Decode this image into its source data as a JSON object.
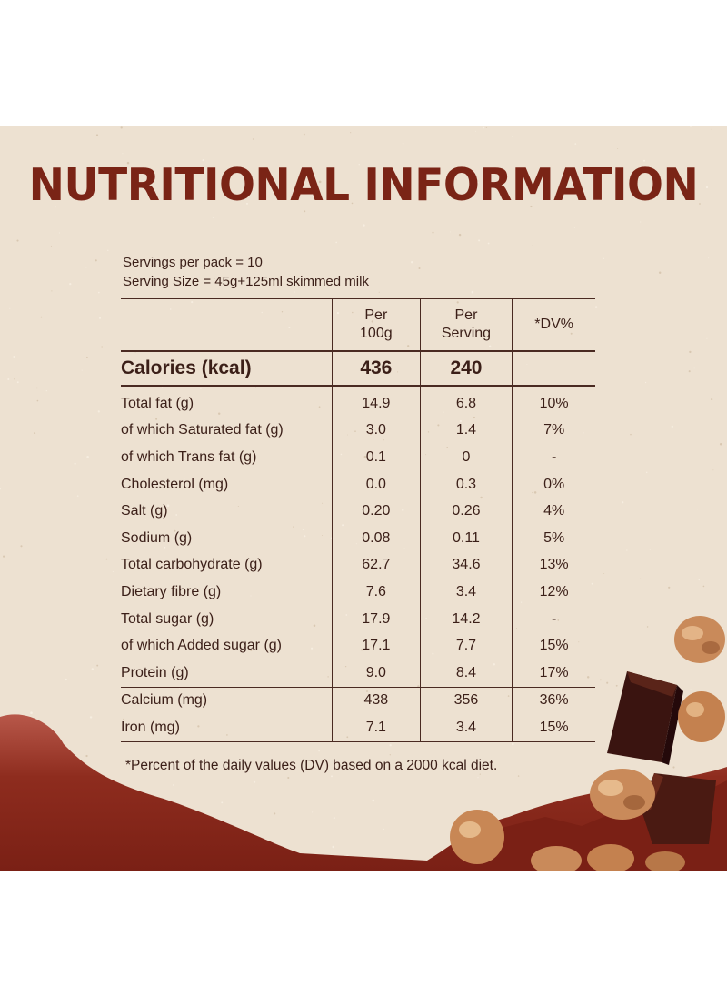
{
  "title": "NUTRITIONAL INFORMATION",
  "servings_per_pack": "Servings per pack = 10",
  "serving_size": "Serving Size = 45g+125ml skimmed milk",
  "table": {
    "headers": {
      "per100_line1": "Per",
      "per100_line2": "100g",
      "perserving_line1": "Per",
      "perserving_line2": "Serving",
      "dv": "*DV%"
    },
    "calories": {
      "label": "Calories (kcal)",
      "per100": "436",
      "perserving": "240",
      "dv": ""
    },
    "rows": [
      {
        "label": "Total fat (g)",
        "per100": "14.9",
        "perserving": "6.8",
        "dv": "10%"
      },
      {
        "label": "of which Saturated fat (g)",
        "per100": "3.0",
        "perserving": "1.4",
        "dv": "7%"
      },
      {
        "label": "of which Trans fat (g)",
        "per100": "0.1",
        "perserving": "0",
        "dv": "-"
      },
      {
        "label": "Cholesterol (mg)",
        "per100": "0.0",
        "perserving": "0.3",
        "dv": "0%"
      },
      {
        "label": "Salt (g)",
        "per100": "0.20",
        "perserving": "0.26",
        "dv": "4%"
      },
      {
        "label": "Sodium (g)",
        "per100": "0.08",
        "perserving": "0.11",
        "dv": "5%"
      },
      {
        "label": "Total carbohydrate (g)",
        "per100": "62.7",
        "perserving": "34.6",
        "dv": "13%"
      },
      {
        "label": "Dietary fibre (g)",
        "per100": "7.6",
        "perserving": "3.4",
        "dv": "12%"
      },
      {
        "label": "Total sugar (g)",
        "per100": "17.9",
        "perserving": "14.2",
        "dv": "-"
      },
      {
        "label": "of which Added sugar (g)",
        "per100": "17.1",
        "perserving": "7.7",
        "dv": "15%"
      },
      {
        "label": "Protein (g)",
        "per100": "9.0",
        "perserving": "8.4",
        "dv": "17%"
      },
      {
        "label": "Calcium (mg)",
        "per100": "438",
        "perserving": "356",
        "dv": "36%"
      },
      {
        "label": "Iron (mg)",
        "per100": "7.1",
        "perserving": "3.4",
        "dv": "15%"
      }
    ]
  },
  "footnote": "*Percent of the daily values (DV) based on a 2000 kcal diet.",
  "colors": {
    "background": "#ede1d1",
    "title": "#7a2416",
    "wave": "#8a2a1c",
    "text": "#3b1f18"
  }
}
